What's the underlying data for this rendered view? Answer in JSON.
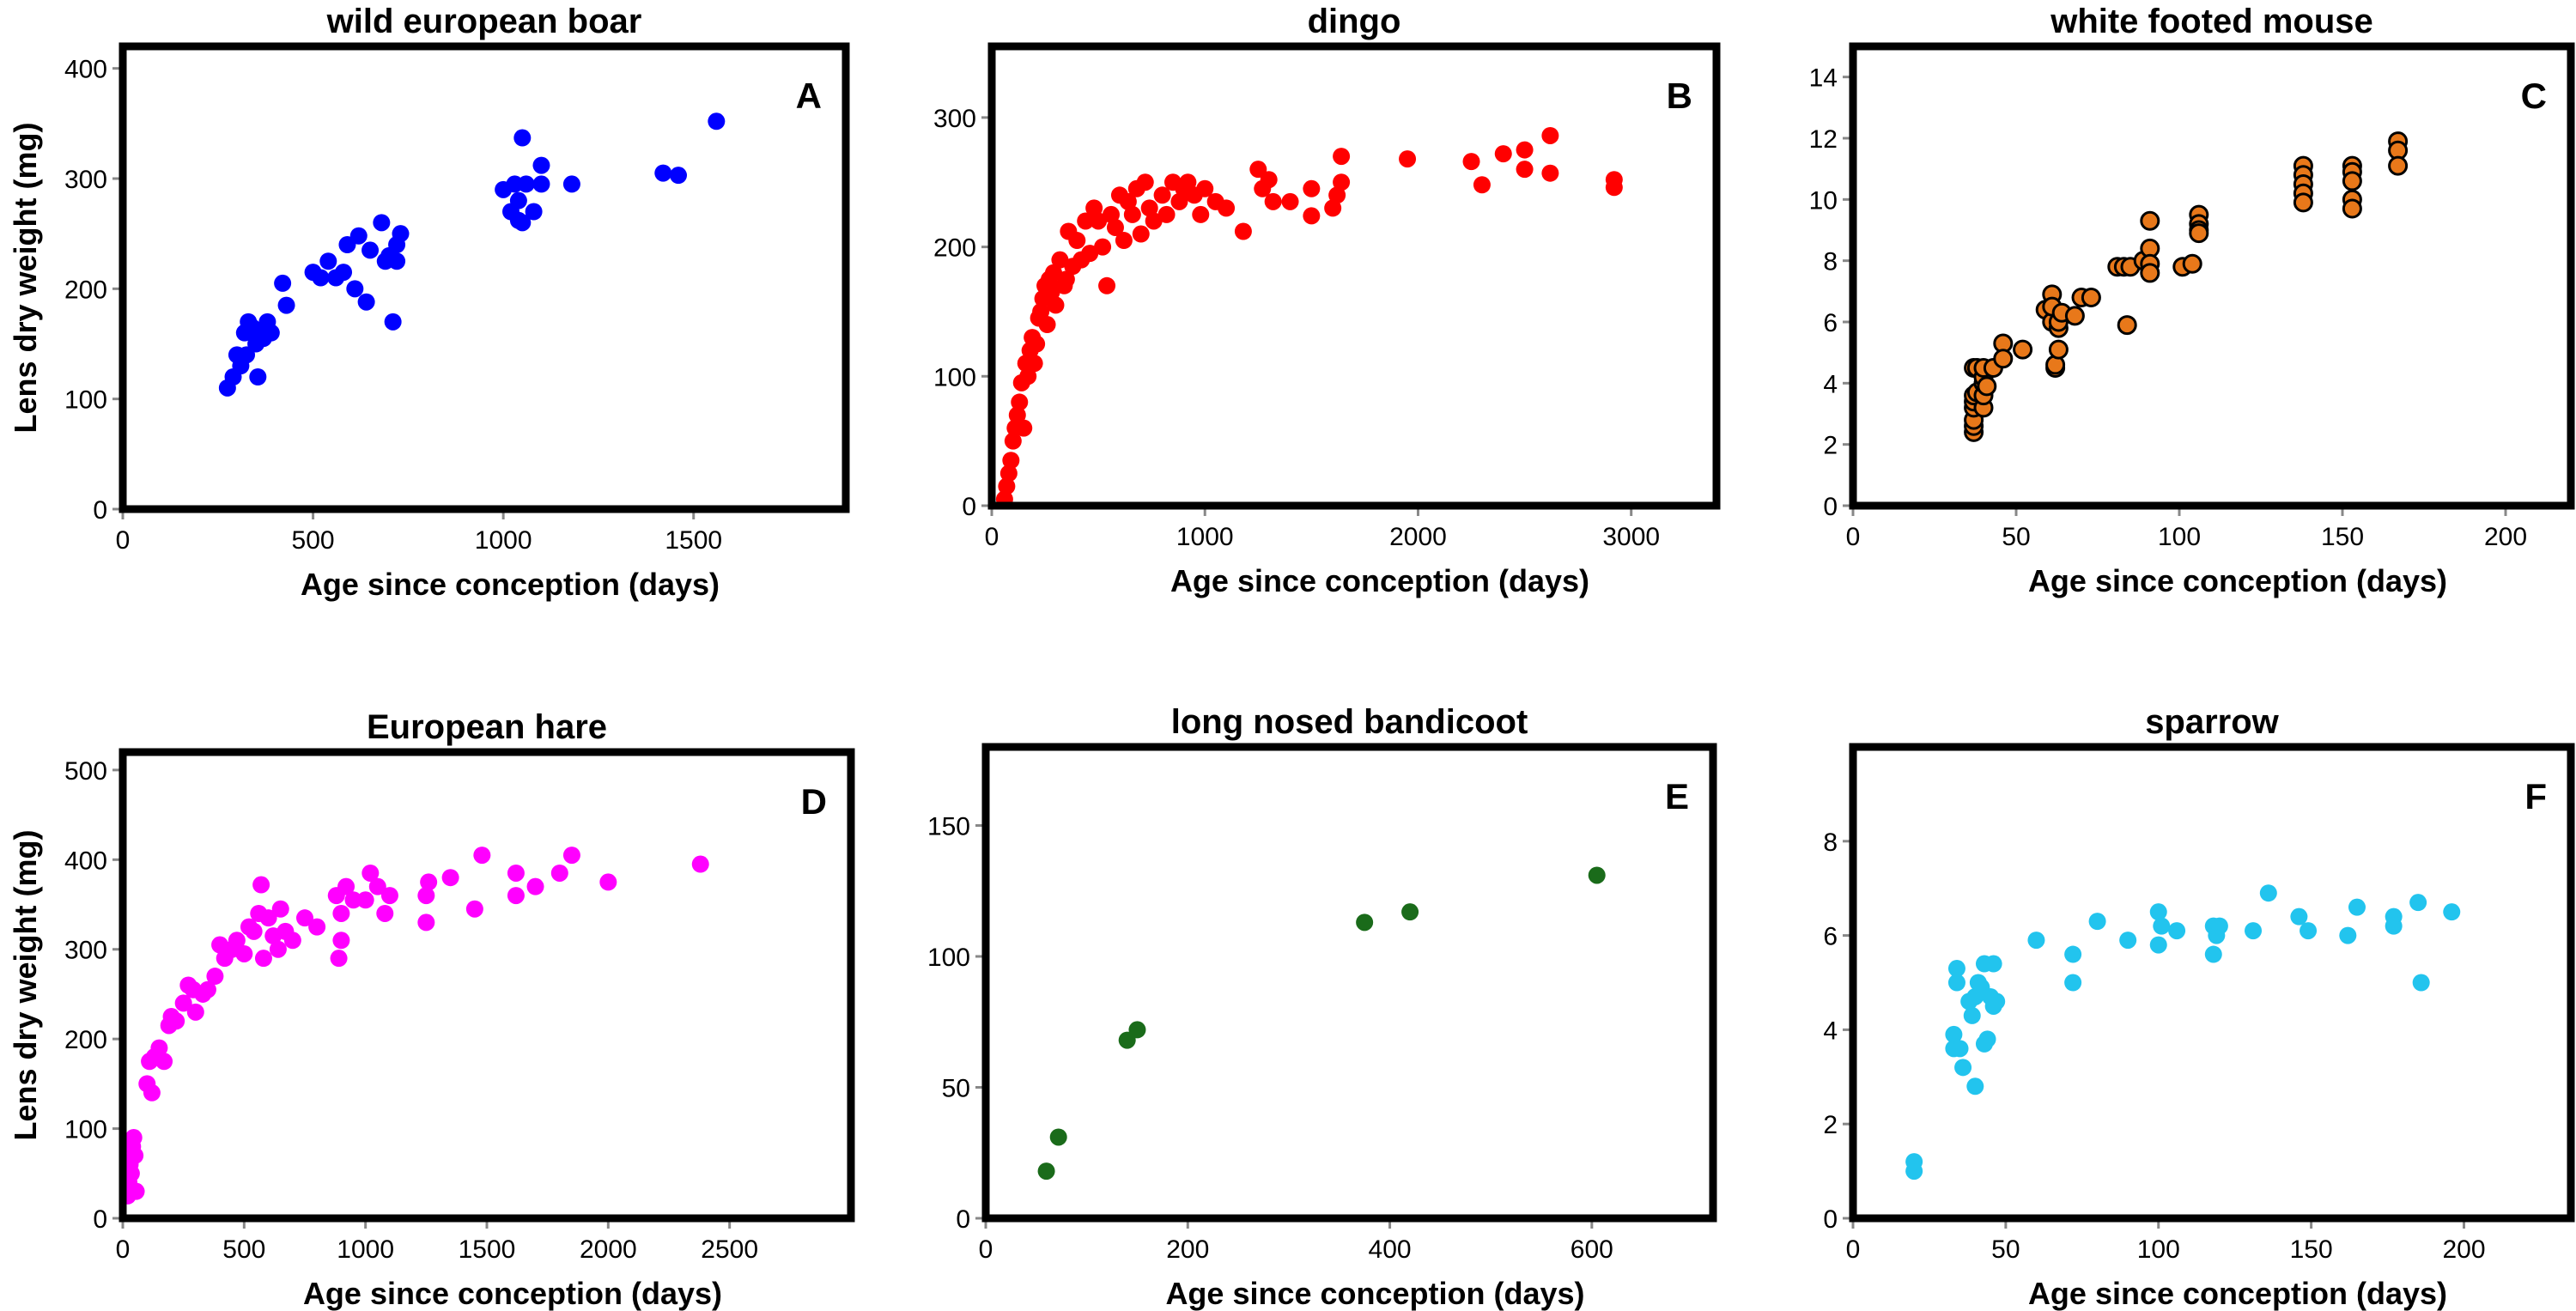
{
  "chart_data": [
    {
      "type": "scatter",
      "panel": "A",
      "title": "wild european boar",
      "xlabel": "Age since conception (days)",
      "ylabel": "Lens dry weight (mg)",
      "xlim": [
        0,
        1900
      ],
      "ylim": [
        0,
        420
      ],
      "xticks": [
        0,
        500,
        1000,
        1500
      ],
      "yticks": [
        0,
        100,
        200,
        300,
        400
      ],
      "color": "#0000ff",
      "stroke": "none",
      "grid": false,
      "points": [
        [
          275,
          110
        ],
        [
          290,
          120
        ],
        [
          300,
          140
        ],
        [
          310,
          130
        ],
        [
          320,
          160
        ],
        [
          325,
          140
        ],
        [
          330,
          170
        ],
        [
          340,
          165
        ],
        [
          350,
          150
        ],
        [
          355,
          120
        ],
        [
          360,
          160
        ],
        [
          370,
          155
        ],
        [
          380,
          170
        ],
        [
          390,
          160
        ],
        [
          420,
          205
        ],
        [
          430,
          185
        ],
        [
          500,
          215
        ],
        [
          520,
          210
        ],
        [
          540,
          225
        ],
        [
          560,
          210
        ],
        [
          580,
          215
        ],
        [
          590,
          240
        ],
        [
          610,
          200
        ],
        [
          620,
          248
        ],
        [
          640,
          188
        ],
        [
          650,
          235
        ],
        [
          680,
          260
        ],
        [
          690,
          225
        ],
        [
          700,
          230
        ],
        [
          710,
          170
        ],
        [
          720,
          240
        ],
        [
          730,
          250
        ],
        [
          720,
          225
        ],
        [
          1000,
          290
        ],
        [
          1020,
          270
        ],
        [
          1030,
          295
        ],
        [
          1040,
          280
        ],
        [
          1040,
          262
        ],
        [
          1050,
          260
        ],
        [
          1050,
          337
        ],
        [
          1060,
          295
        ],
        [
          1080,
          270
        ],
        [
          1100,
          295
        ],
        [
          1100,
          312
        ],
        [
          1180,
          295
        ],
        [
          1420,
          305
        ],
        [
          1460,
          303
        ],
        [
          1560,
          352
        ]
      ]
    },
    {
      "type": "scatter",
      "panel": "B",
      "title": "dingo",
      "xlabel": "Age since conception (days)",
      "ylabel": "",
      "xlim": [
        0,
        3400
      ],
      "ylim": [
        0,
        355
      ],
      "xticks": [
        0,
        1000,
        2000,
        3000
      ],
      "yticks": [
        0,
        100,
        200,
        300
      ],
      "color": "#ff0000",
      "stroke": "none",
      "grid": false,
      "points": [
        [
          60,
          5
        ],
        [
          70,
          15
        ],
        [
          80,
          25
        ],
        [
          90,
          35
        ],
        [
          100,
          50
        ],
        [
          110,
          60
        ],
        [
          120,
          70
        ],
        [
          130,
          80
        ],
        [
          140,
          95
        ],
        [
          150,
          60
        ],
        [
          160,
          110
        ],
        [
          170,
          100
        ],
        [
          180,
          120
        ],
        [
          190,
          130
        ],
        [
          200,
          110
        ],
        [
          210,
          125
        ],
        [
          220,
          145
        ],
        [
          230,
          150
        ],
        [
          240,
          160
        ],
        [
          250,
          170
        ],
        [
          260,
          140
        ],
        [
          270,
          175
        ],
        [
          280,
          165
        ],
        [
          290,
          180
        ],
        [
          300,
          155
        ],
        [
          320,
          190
        ],
        [
          340,
          170
        ],
        [
          350,
          175
        ],
        [
          360,
          212
        ],
        [
          380,
          185
        ],
        [
          400,
          205
        ],
        [
          420,
          190
        ],
        [
          440,
          220
        ],
        [
          460,
          195
        ],
        [
          480,
          230
        ],
        [
          500,
          220
        ],
        [
          520,
          200
        ],
        [
          540,
          170
        ],
        [
          560,
          225
        ],
        [
          580,
          215
        ],
        [
          600,
          240
        ],
        [
          620,
          205
        ],
        [
          640,
          235
        ],
        [
          660,
          225
        ],
        [
          680,
          245
        ],
        [
          700,
          210
        ],
        [
          720,
          250
        ],
        [
          740,
          230
        ],
        [
          760,
          220
        ],
        [
          800,
          240
        ],
        [
          820,
          225
        ],
        [
          850,
          250
        ],
        [
          880,
          235
        ],
        [
          900,
          245
        ],
        [
          920,
          250
        ],
        [
          950,
          240
        ],
        [
          980,
          225
        ],
        [
          1000,
          245
        ],
        [
          1050,
          235
        ],
        [
          1100,
          230
        ],
        [
          1180,
          212
        ],
        [
          1250,
          260
        ],
        [
          1270,
          245
        ],
        [
          1300,
          252
        ],
        [
          1320,
          235
        ],
        [
          1400,
          235
        ],
        [
          1500,
          245
        ],
        [
          1500,
          224
        ],
        [
          1600,
          230
        ],
        [
          1620,
          240
        ],
        [
          1640,
          250
        ],
        [
          1640,
          270
        ],
        [
          1950,
          268
        ],
        [
          2250,
          266
        ],
        [
          2300,
          248
        ],
        [
          2400,
          272
        ],
        [
          2500,
          275
        ],
        [
          2500,
          260
        ],
        [
          2620,
          286
        ],
        [
          2620,
          257
        ],
        [
          2920,
          252
        ],
        [
          2920,
          246
        ]
      ]
    },
    {
      "type": "scatter",
      "panel": "C",
      "title": "white footed mouse",
      "xlabel": "Age since conception (days)",
      "ylabel": "",
      "xlim": [
        0,
        220
      ],
      "ylim": [
        0,
        15
      ],
      "xticks": [
        0,
        50,
        100,
        150,
        200
      ],
      "yticks": [
        0,
        2,
        4,
        6,
        8,
        10,
        12,
        14
      ],
      "color": "#e8781a",
      "stroke": "#000000",
      "grid": false,
      "points": [
        [
          37,
          2.4
        ],
        [
          37,
          2.6
        ],
        [
          37,
          2.8
        ],
        [
          37,
          3.2
        ],
        [
          37,
          3.4
        ],
        [
          37,
          3.6
        ],
        [
          37,
          4.5
        ],
        [
          38,
          3.7
        ],
        [
          38,
          4.5
        ],
        [
          40,
          3.2
        ],
        [
          40,
          3.6
        ],
        [
          40,
          4.0
        ],
        [
          40,
          4.2
        ],
        [
          40,
          4.5
        ],
        [
          41,
          3.9
        ],
        [
          43,
          4.5
        ],
        [
          46,
          5.3
        ],
        [
          46,
          4.8
        ],
        [
          52,
          5.1
        ],
        [
          59,
          6.4
        ],
        [
          61,
          6.9
        ],
        [
          61,
          6.0
        ],
        [
          61,
          6.5
        ],
        [
          62,
          4.5
        ],
        [
          62,
          4.6
        ],
        [
          63,
          5.1
        ],
        [
          63,
          5.8
        ],
        [
          63,
          6.0
        ],
        [
          64,
          6.3
        ],
        [
          68,
          6.2
        ],
        [
          70,
          6.8
        ],
        [
          73,
          6.8
        ],
        [
          81,
          7.8
        ],
        [
          83,
          7.8
        ],
        [
          85,
          7.8
        ],
        [
          84,
          5.9
        ],
        [
          89,
          8.0
        ],
        [
          91,
          9.3
        ],
        [
          91,
          8.4
        ],
        [
          91,
          7.9
        ],
        [
          91,
          7.6
        ],
        [
          101,
          7.8
        ],
        [
          104,
          7.9
        ],
        [
          106,
          9.5
        ],
        [
          106,
          9.2
        ],
        [
          106,
          9.0
        ],
        [
          106,
          8.9
        ],
        [
          138,
          11.1
        ],
        [
          138,
          10.8
        ],
        [
          138,
          10.5
        ],
        [
          138,
          10.2
        ],
        [
          138,
          9.9
        ],
        [
          153,
          11.1
        ],
        [
          153,
          10.9
        ],
        [
          153,
          10.6
        ],
        [
          153,
          10.0
        ],
        [
          153,
          9.7
        ],
        [
          167,
          11.9
        ],
        [
          167,
          11.6
        ],
        [
          167,
          11.1
        ]
      ]
    },
    {
      "type": "scatter",
      "panel": "D",
      "title": "European hare",
      "xlabel": "Age since conception (days)",
      "ylabel": "Lens dry weight (mg)",
      "xlim": [
        0,
        3000
      ],
      "ylim": [
        0,
        520
      ],
      "xticks": [
        0,
        500,
        1000,
        1500,
        2000,
        2500
      ],
      "yticks": [
        0,
        100,
        200,
        300,
        400,
        500
      ],
      "color": "#ff00ff",
      "stroke": "none",
      "grid": false,
      "points": [
        [
          20,
          25
        ],
        [
          25,
          40
        ],
        [
          30,
          60
        ],
        [
          35,
          50
        ],
        [
          40,
          80
        ],
        [
          45,
          90
        ],
        [
          50,
          70
        ],
        [
          55,
          30
        ],
        [
          100,
          150
        ],
        [
          110,
          175
        ],
        [
          120,
          140
        ],
        [
          130,
          180
        ],
        [
          150,
          190
        ],
        [
          170,
          175
        ],
        [
          190,
          215
        ],
        [
          200,
          225
        ],
        [
          220,
          220
        ],
        [
          250,
          240
        ],
        [
          270,
          260
        ],
        [
          290,
          255
        ],
        [
          300,
          230
        ],
        [
          330,
          250
        ],
        [
          350,
          255
        ],
        [
          380,
          270
        ],
        [
          400,
          305
        ],
        [
          420,
          290
        ],
        [
          450,
          300
        ],
        [
          470,
          310
        ],
        [
          500,
          295
        ],
        [
          520,
          325
        ],
        [
          540,
          320
        ],
        [
          560,
          340
        ],
        [
          570,
          372
        ],
        [
          580,
          290
        ],
        [
          600,
          335
        ],
        [
          620,
          315
        ],
        [
          640,
          300
        ],
        [
          650,
          345
        ],
        [
          670,
          320
        ],
        [
          700,
          310
        ],
        [
          750,
          335
        ],
        [
          800,
          325
        ],
        [
          880,
          360
        ],
        [
          890,
          290
        ],
        [
          900,
          310
        ],
        [
          900,
          340
        ],
        [
          920,
          370
        ],
        [
          950,
          355
        ],
        [
          1000,
          355
        ],
        [
          1020,
          385
        ],
        [
          1050,
          370
        ],
        [
          1080,
          340
        ],
        [
          1100,
          360
        ],
        [
          1250,
          330
        ],
        [
          1250,
          360
        ],
        [
          1260,
          375
        ],
        [
          1350,
          380
        ],
        [
          1450,
          345
        ],
        [
          1480,
          405
        ],
        [
          1620,
          360
        ],
        [
          1620,
          385
        ],
        [
          1700,
          370
        ],
        [
          1800,
          385
        ],
        [
          1850,
          405
        ],
        [
          2000,
          375
        ],
        [
          2380,
          395
        ]
      ]
    },
    {
      "type": "scatter",
      "panel": "E",
      "title": "long nosed bandicoot",
      "xlabel": "Age since conception (days)",
      "ylabel": "",
      "xlim": [
        0,
        720
      ],
      "ylim": [
        0,
        180
      ],
      "xticks": [
        0,
        200,
        400,
        600
      ],
      "yticks": [
        0,
        50,
        100,
        150
      ],
      "color": "#1a6b1a",
      "stroke": "none",
      "grid": false,
      "points": [
        [
          60,
          18
        ],
        [
          72,
          31
        ],
        [
          140,
          68
        ],
        [
          150,
          72
        ],
        [
          375,
          113
        ],
        [
          420,
          117
        ],
        [
          605,
          131
        ]
      ]
    },
    {
      "type": "scatter",
      "panel": "F",
      "title": "sparrow",
      "xlabel": "Age since conception  (days)",
      "ylabel": "",
      "xlim": [
        0,
        235
      ],
      "ylim": [
        0,
        10
      ],
      "xticks": [
        0,
        50,
        100,
        150,
        200
      ],
      "yticks": [
        0,
        2,
        4,
        6,
        8
      ],
      "color": "#22c4ee",
      "stroke": "none",
      "grid": false,
      "points": [
        [
          20,
          1.0
        ],
        [
          20,
          1.2
        ],
        [
          33,
          3.6
        ],
        [
          33,
          3.9
        ],
        [
          34,
          5.3
        ],
        [
          34,
          5.0
        ],
        [
          35,
          3.6
        ],
        [
          36,
          3.2
        ],
        [
          38,
          4.6
        ],
        [
          39,
          4.3
        ],
        [
          40,
          2.8
        ],
        [
          40,
          4.7
        ],
        [
          41,
          5.0
        ],
        [
          42,
          4.9
        ],
        [
          43,
          5.4
        ],
        [
          43,
          3.7
        ],
        [
          44,
          3.8
        ],
        [
          45,
          4.7
        ],
        [
          46,
          5.4
        ],
        [
          46,
          4.5
        ],
        [
          47,
          4.6
        ],
        [
          60,
          5.9
        ],
        [
          72,
          5.6
        ],
        [
          72,
          5.0
        ],
        [
          80,
          6.3
        ],
        [
          90,
          5.9
        ],
        [
          100,
          6.5
        ],
        [
          100,
          5.8
        ],
        [
          101,
          6.2
        ],
        [
          106,
          6.1
        ],
        [
          118,
          6.2
        ],
        [
          118,
          5.6
        ],
        [
          119,
          6.0
        ],
        [
          120,
          6.2
        ],
        [
          131,
          6.1
        ],
        [
          136,
          6.9
        ],
        [
          146,
          6.4
        ],
        [
          149,
          6.1
        ],
        [
          162,
          6.0
        ],
        [
          165,
          6.6
        ],
        [
          177,
          6.4
        ],
        [
          177,
          6.2
        ],
        [
          185,
          6.7
        ],
        [
          186,
          5.0
        ],
        [
          196,
          6.5
        ]
      ]
    }
  ]
}
